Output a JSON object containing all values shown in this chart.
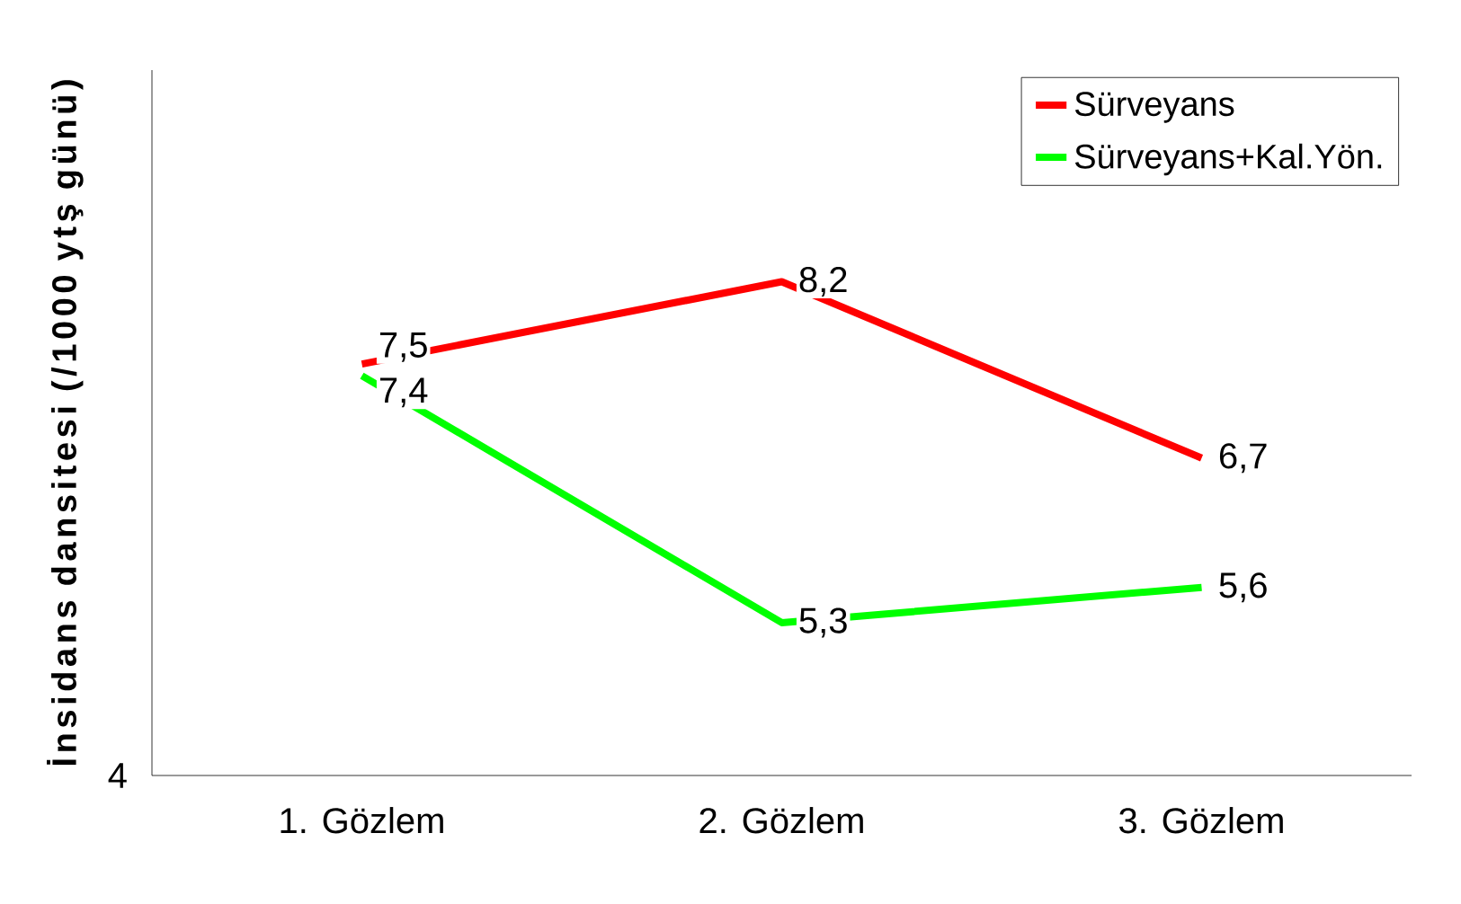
{
  "chart_data": {
    "type": "line",
    "ylabel": "İnsidans dansitesi (/1000 ytş günü)",
    "categories": [
      "1. Gözlem",
      "2. Gözlem",
      "3. Gözlem"
    ],
    "series": [
      {
        "name": "Sürveyans",
        "color": "#ff0000",
        "values": [
          7.5,
          8.2,
          6.7
        ],
        "value_labels": [
          "7,5",
          "8,2",
          "6,7"
        ]
      },
      {
        "name": "Sürveyans+Kal.Yön.",
        "color": "#00ff00",
        "values": [
          7.4,
          5.3,
          5.6
        ],
        "value_labels": [
          "7,4",
          "5,3",
          "5,6"
        ]
      }
    ],
    "ylim": [
      4,
      10
    ],
    "annotations": [
      "4"
    ],
    "legend": "top right",
    "grid": false
  }
}
